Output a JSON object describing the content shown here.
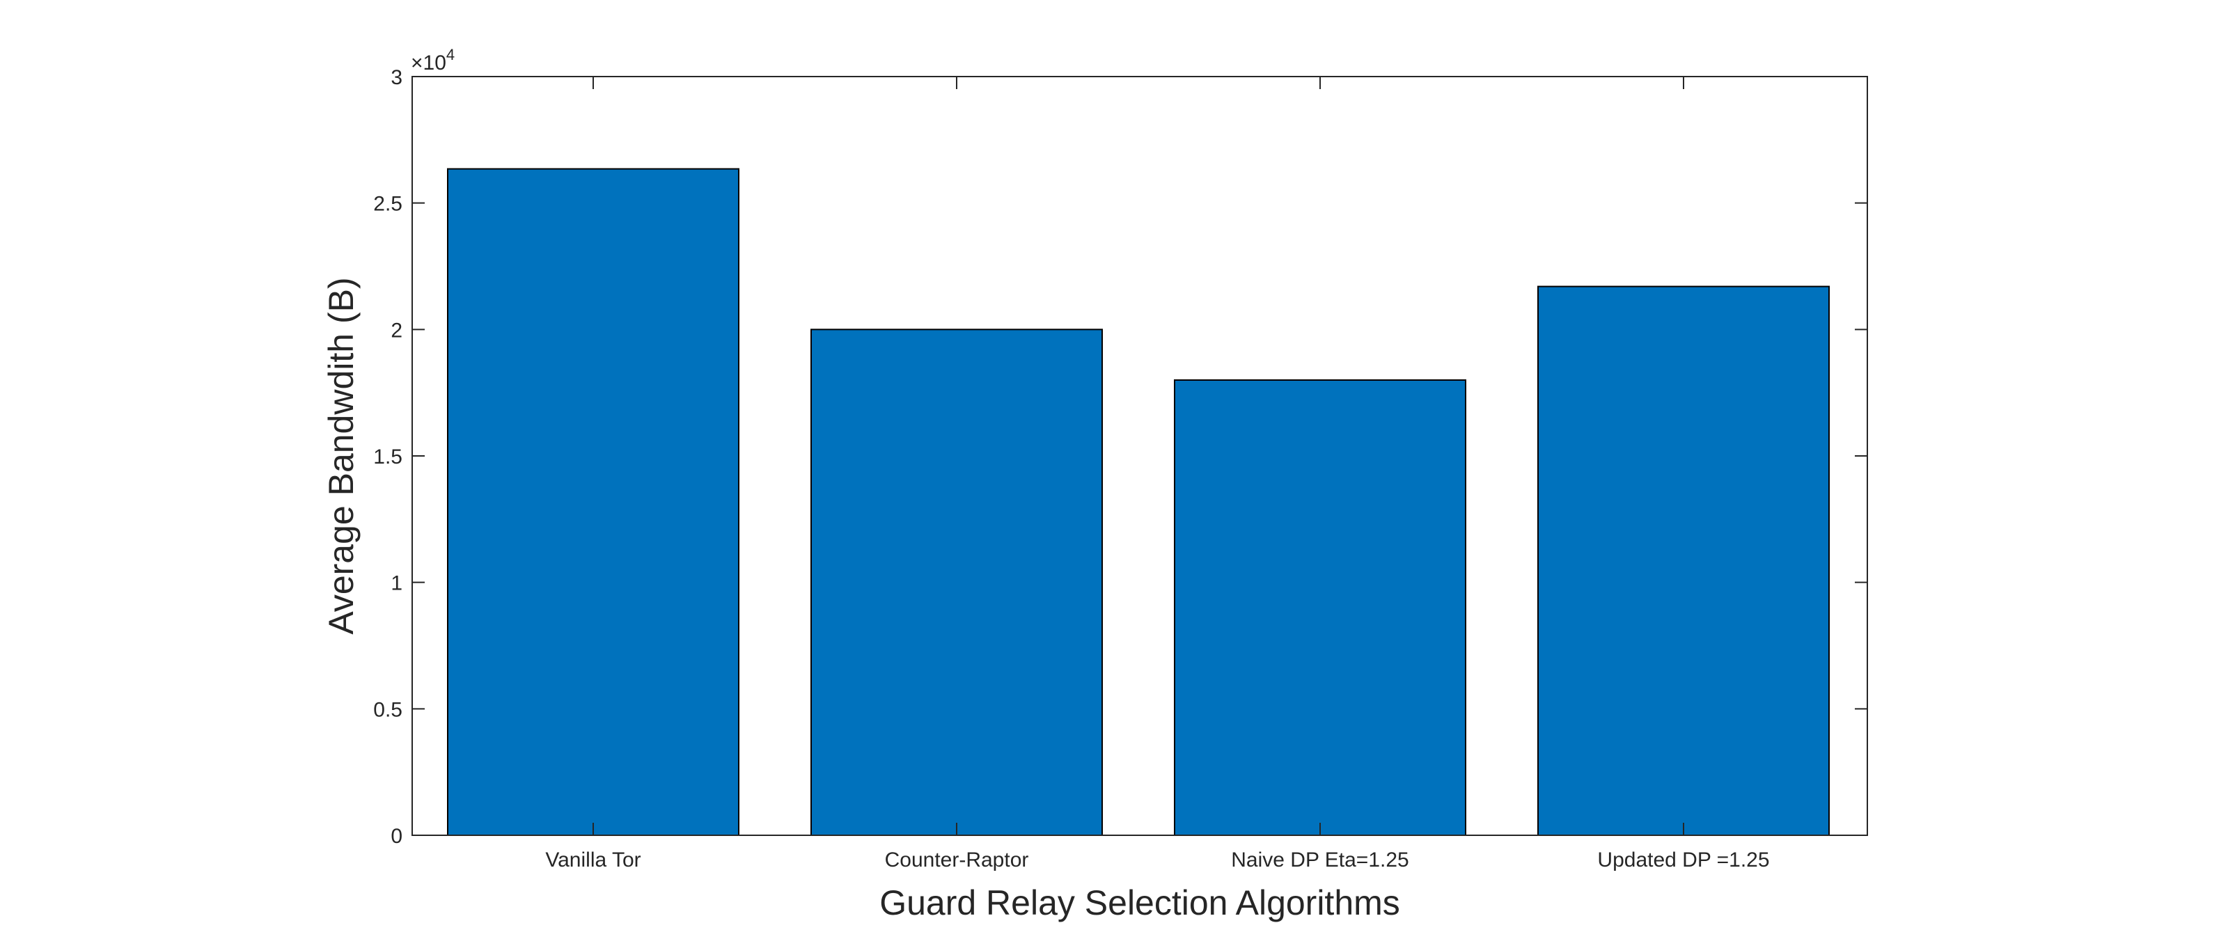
{
  "chart_data": {
    "type": "bar",
    "title": "",
    "xlabel": "Guard Relay Selection Algorithms",
    "ylabel": "Average Bandwdith (B)",
    "categories": [
      "Vanilla Tor",
      "Counter-Raptor",
      "Naive DP Eta=1.25",
      "Updated DP =1.25"
    ],
    "values": [
      26350,
      20000,
      18000,
      21700
    ],
    "ylim": [
      0,
      30000
    ],
    "y_ticks": [
      0,
      5000,
      10000,
      15000,
      20000,
      25000,
      30000
    ],
    "y_tick_labels": [
      "0",
      "0.5",
      "1",
      "1.5",
      "2",
      "2.5",
      "3"
    ],
    "y_exponent_label": {
      "base": "×10",
      "power": "4"
    },
    "grid": false,
    "legend": "none",
    "bar_color": "#0072BD",
    "bar_edge_color": "#000000",
    "axis_color": "#262626"
  }
}
